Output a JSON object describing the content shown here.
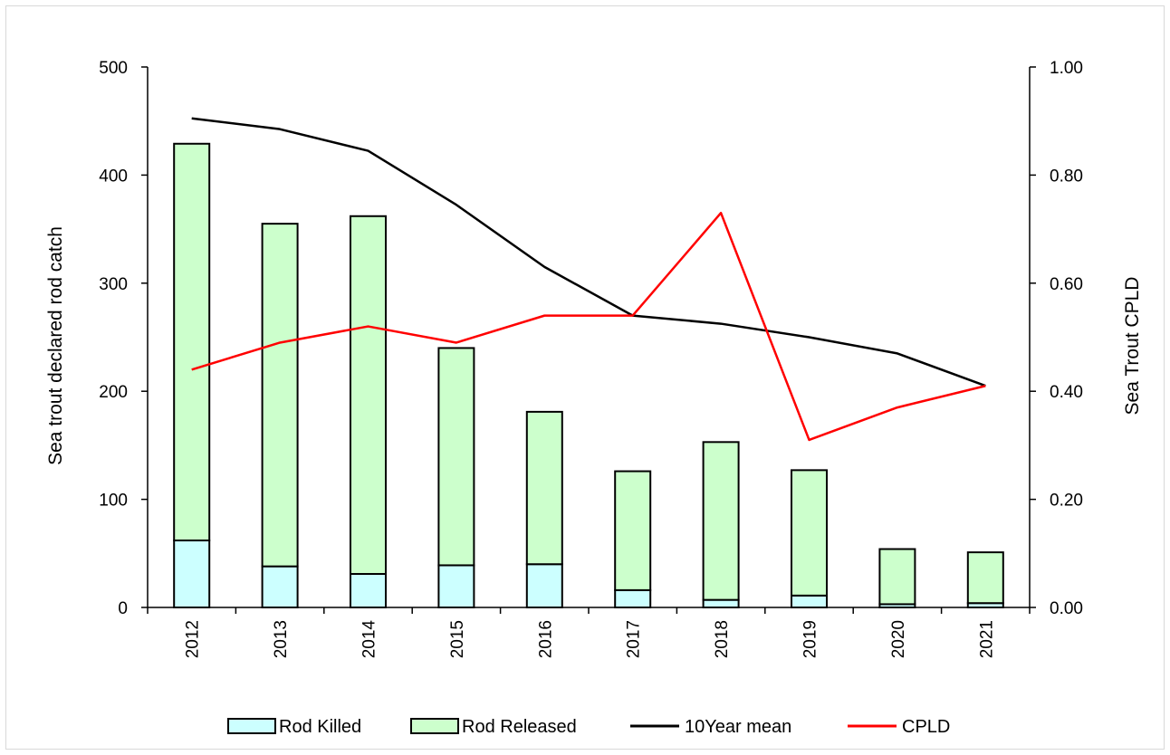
{
  "chart_data": {
    "type": "bar",
    "categories": [
      "2012",
      "2013",
      "2014",
      "2015",
      "2016",
      "2017",
      "2018",
      "2019",
      "2020",
      "2021"
    ],
    "series": [
      {
        "name": "Rod Killed",
        "type": "bar",
        "stack": "catch",
        "axis": "left",
        "color": "#ccffff",
        "values": [
          62,
          38,
          31,
          39,
          40,
          16,
          7,
          11,
          3,
          4
        ]
      },
      {
        "name": "Rod Released",
        "type": "bar",
        "stack": "catch",
        "axis": "left",
        "color": "#ccffcc",
        "values": [
          367,
          317,
          331,
          201,
          141,
          110,
          146,
          116,
          51,
          47
        ]
      },
      {
        "name": "10Year mean",
        "type": "line",
        "axis": "right",
        "color": "#000000",
        "values": [
          0.905,
          0.885,
          0.845,
          0.745,
          0.63,
          0.54,
          0.525,
          0.5,
          0.47,
          0.41
        ]
      },
      {
        "name": "CPLD",
        "type": "line",
        "axis": "right",
        "color": "#ff0000",
        "values": [
          0.44,
          0.49,
          0.52,
          0.49,
          0.54,
          0.54,
          0.73,
          0.31,
          0.37,
          0.41
        ]
      }
    ],
    "ylabel": "Sea trout declared rod catch",
    "ylabel_right": "Sea Trout CPLD",
    "ylim": [
      0,
      500
    ],
    "ylim_right": [
      0,
      1.0
    ],
    "yticks": [
      "0",
      "100",
      "200",
      "300",
      "400",
      "500"
    ],
    "yticks_right": [
      "0.00",
      "0.20",
      "0.40",
      "0.60",
      "0.80",
      "1.00"
    ],
    "grid": false,
    "legend_position": "bottom"
  }
}
